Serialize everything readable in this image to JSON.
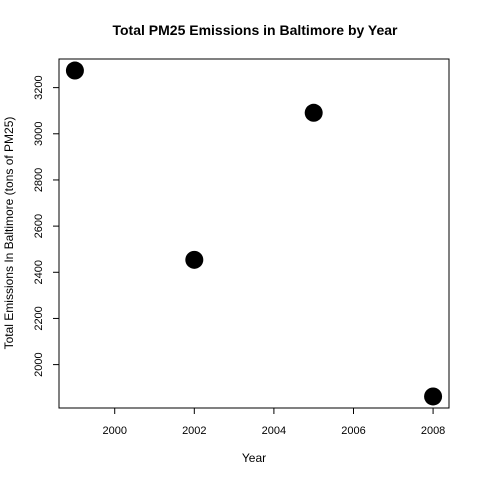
{
  "chart_data": {
    "type": "scatter",
    "title": "Total PM25 Emissions in Baltimore by Year",
    "xlabel": "Year",
    "ylabel": "Total Emissions In Baltimore (tons of PM25)",
    "x": [
      1999,
      2002,
      2005,
      2008
    ],
    "y": [
      3274,
      2454,
      3091,
      1862
    ],
    "xlim": [
      1998.6,
      2008.4
    ],
    "ylim": [
      1812,
      3324
    ],
    "xticks": [
      2000,
      2002,
      2004,
      2006,
      2008
    ],
    "yticks": [
      2000,
      2200,
      2400,
      2600,
      2800,
      3000,
      3200
    ],
    "grid": false,
    "marker_color": "#000000"
  }
}
